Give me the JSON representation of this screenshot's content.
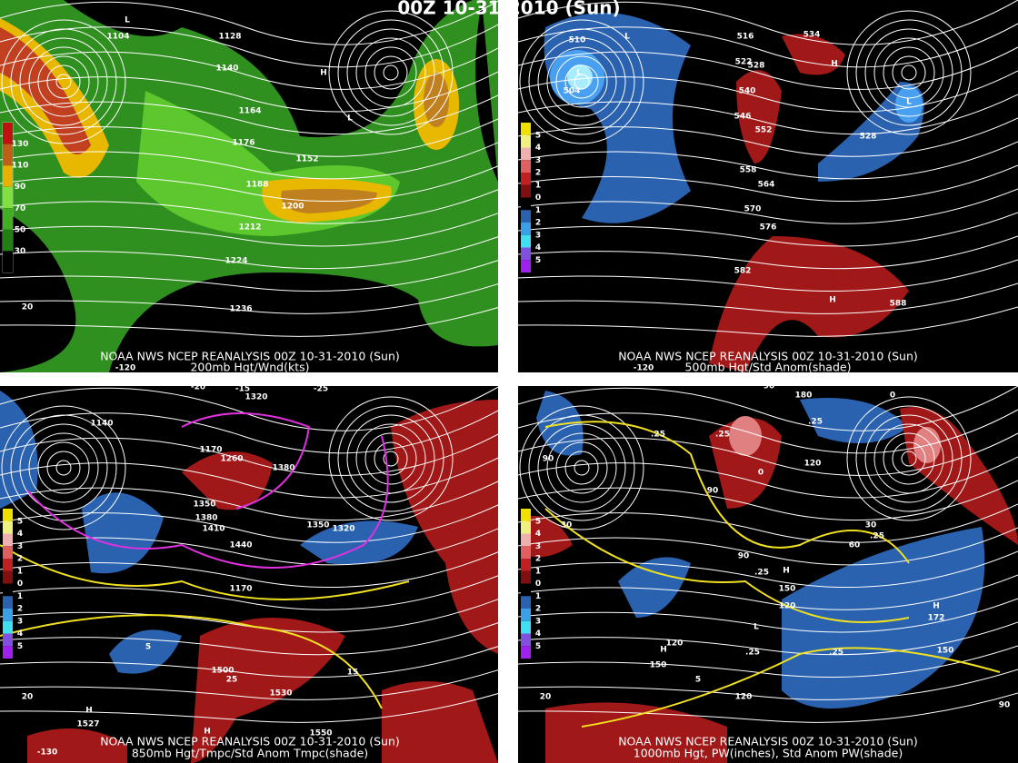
{
  "title": "00Z 10-31-2010 (Sun)",
  "panels": [
    {
      "source": "NOAA NWS NCEP REANALYSIS 00Z 10-31-2010 (Sun)",
      "caption": "200mb Hgt/Wnd(kts)",
      "legend": [
        "130",
        "110",
        "90",
        "70",
        "50",
        "30"
      ],
      "labels": [
        "1104",
        "1128",
        "1140",
        "1164",
        "1176",
        "1152",
        "1188",
        "1200",
        "1212",
        "1224",
        "1236",
        "H",
        "L",
        "L",
        "-120",
        "20"
      ]
    },
    {
      "source": "NOAA NWS NCEP REANALYSIS 00Z 10-31-2010 (Sun)",
      "caption": "500mb Hgt/Std Anom(shade)",
      "legend": [
        "5",
        "4",
        "3",
        "2",
        "1",
        "0",
        "1",
        "2",
        "3",
        "4",
        "5"
      ],
      "labels": [
        "510",
        "L",
        "L",
        "504",
        "516",
        "522",
        "528",
        "534",
        "540",
        "546",
        "552",
        "558",
        "564",
        "570",
        "576",
        "582",
        "588",
        "H",
        "L",
        "528",
        "H",
        "-120"
      ]
    },
    {
      "source": "NOAA NWS NCEP REANALYSIS 00Z 10-31-2010 (Sun)",
      "caption": "850mb Hgt/Tmpc/Std Anom Tmpc(shade)",
      "legend": [
        "5",
        "4",
        "3",
        "2",
        "1",
        "0",
        "1",
        "2",
        "3",
        "4",
        "5"
      ],
      "labels": [
        "1140",
        "1320",
        "1170",
        "1260",
        "1380",
        "1350",
        "1380",
        "1410",
        "1440",
        "1350",
        "1320",
        "1170",
        "1500",
        "1530",
        "-20",
        "-15",
        "-25",
        "5",
        "25",
        "15",
        "H",
        "1527",
        "H",
        "1550",
        "20",
        "-130"
      ]
    },
    {
      "source": "NOAA NWS NCEP REANALYSIS 00Z 10-31-2010 (Sun)",
      "caption": "1000mb Hgt, PW(inches), Std Anom PW(shade)",
      "legend": [
        "5",
        "4",
        "3",
        "2",
        "1",
        "0",
        "1",
        "2",
        "3",
        "4",
        "5"
      ],
      "labels": [
        "90",
        "180",
        "0",
        ".25",
        ".25",
        ".25",
        "90",
        "30",
        "90",
        "0",
        "120",
        "60",
        "30",
        ".25",
        "90",
        ".25",
        "H",
        "150",
        "120",
        "L",
        ".25",
        "120",
        "H",
        "150",
        "5",
        ".25",
        "H",
        "172",
        "150",
        "120",
        "20",
        "90"
      ]
    }
  ]
}
